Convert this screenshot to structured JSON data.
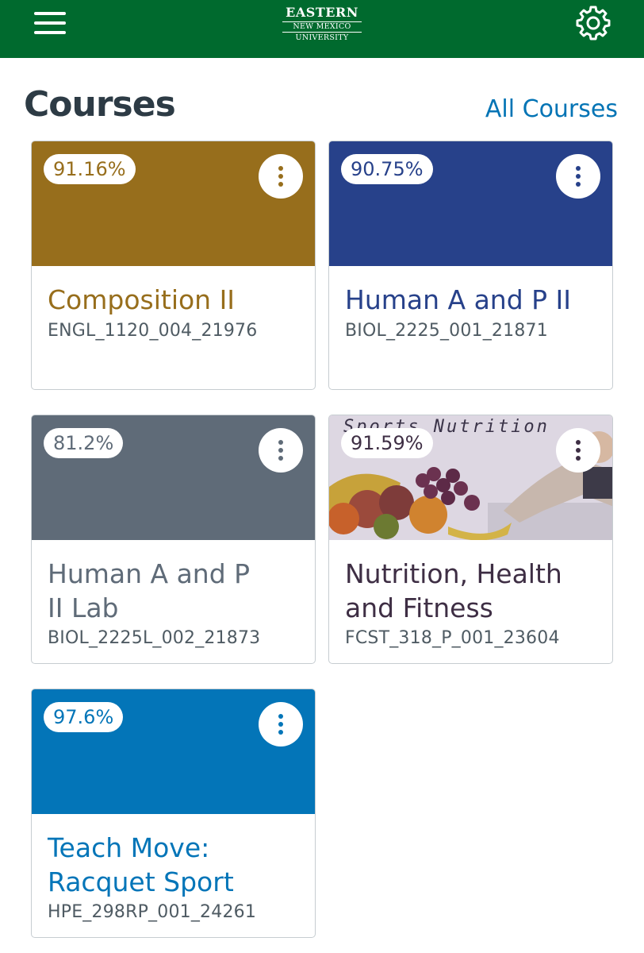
{
  "header": {
    "logo": {
      "line1": "EASTERN",
      "line2": "NEW MEXICO",
      "line3": "UNIVERSITY"
    },
    "colors": {
      "bar": "#006a2e"
    },
    "icons": {
      "menu": "hamburger-icon",
      "settings": "gear-icon"
    }
  },
  "page": {
    "title": "Courses",
    "all_courses_link": "All Courses"
  },
  "courses": [
    {
      "grade": "91.16%",
      "name": "Composition II",
      "code": "ENGL_1120_004_21976",
      "color": "#976e1c"
    },
    {
      "grade": "90.75%",
      "name": "Human A and P II",
      "code": "BIOL_2225_001_21871",
      "color": "#27418a"
    },
    {
      "grade": "81.2%",
      "name": "Human A and P II Lab",
      "code": "BIOL_2225L_002_21873",
      "color": "#5f6b78"
    },
    {
      "grade": "91.59%",
      "name": "Nutrition, Health and Fitness",
      "code": "FCST_318_P_001_23604",
      "color": "#3e2e44",
      "image_text": "Sports Nutrition"
    },
    {
      "grade": "97.6%",
      "name": "Teach Move: Racquet Sport",
      "code": "HPE_298RP_001_24261",
      "color": "#0375b8"
    }
  ]
}
